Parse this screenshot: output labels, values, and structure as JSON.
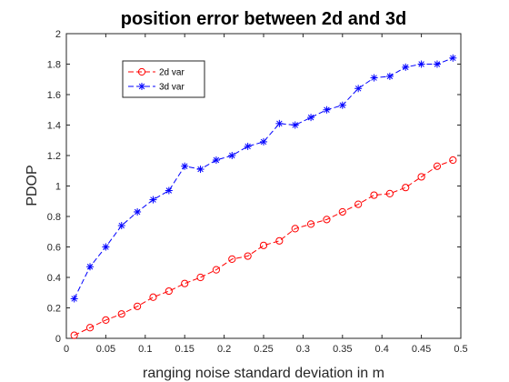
{
  "chart_data": {
    "type": "line",
    "title": "position error between 2d and 3d",
    "xlabel": "ranging noise standard deviation in m",
    "ylabel": "PDOP",
    "xlim": [
      0,
      0.5
    ],
    "ylim": [
      0,
      2
    ],
    "xticks": [
      0,
      0.05,
      0.1,
      0.15,
      0.2,
      0.25,
      0.3,
      0.35,
      0.4,
      0.45,
      0.5
    ],
    "xtick_labels": [
      "0",
      "0.05",
      "0.1",
      "0.15",
      "0.2",
      "0.25",
      "0.3",
      "0.35",
      "0.4",
      "0.45",
      "0.5"
    ],
    "yticks": [
      0,
      0.2,
      0.4,
      0.6,
      0.8,
      1,
      1.2,
      1.4,
      1.6,
      1.8,
      2
    ],
    "ytick_labels": [
      "0",
      "0.2",
      "0.4",
      "0.6",
      "0.8",
      "1",
      "1.2",
      "1.4",
      "1.6",
      "1.8",
      "2"
    ],
    "grid": false,
    "legend_position": "top-left",
    "x": [
      0.01,
      0.03,
      0.05,
      0.07,
      0.09,
      0.11,
      0.13,
      0.15,
      0.17,
      0.19,
      0.21,
      0.23,
      0.25,
      0.27,
      0.29,
      0.31,
      0.33,
      0.35,
      0.37,
      0.39,
      0.41,
      0.43,
      0.45,
      0.47,
      0.49
    ],
    "series": [
      {
        "name": "2d var",
        "color": "#ff0000",
        "marker": "circle",
        "values": [
          0.02,
          0.07,
          0.12,
          0.16,
          0.21,
          0.27,
          0.31,
          0.36,
          0.4,
          0.45,
          0.52,
          0.54,
          0.61,
          0.64,
          0.72,
          0.75,
          0.78,
          0.83,
          0.88,
          0.94,
          0.95,
          0.99,
          1.06,
          1.13,
          1.17
        ]
      },
      {
        "name": "3d var",
        "color": "#0000ff",
        "marker": "asterisk",
        "values": [
          0.26,
          0.47,
          0.6,
          0.74,
          0.83,
          0.91,
          0.97,
          1.13,
          1.11,
          1.17,
          1.2,
          1.26,
          1.29,
          1.41,
          1.4,
          1.45,
          1.5,
          1.53,
          1.64,
          1.71,
          1.72,
          1.78,
          1.8,
          1.8,
          1.84
        ]
      }
    ]
  }
}
